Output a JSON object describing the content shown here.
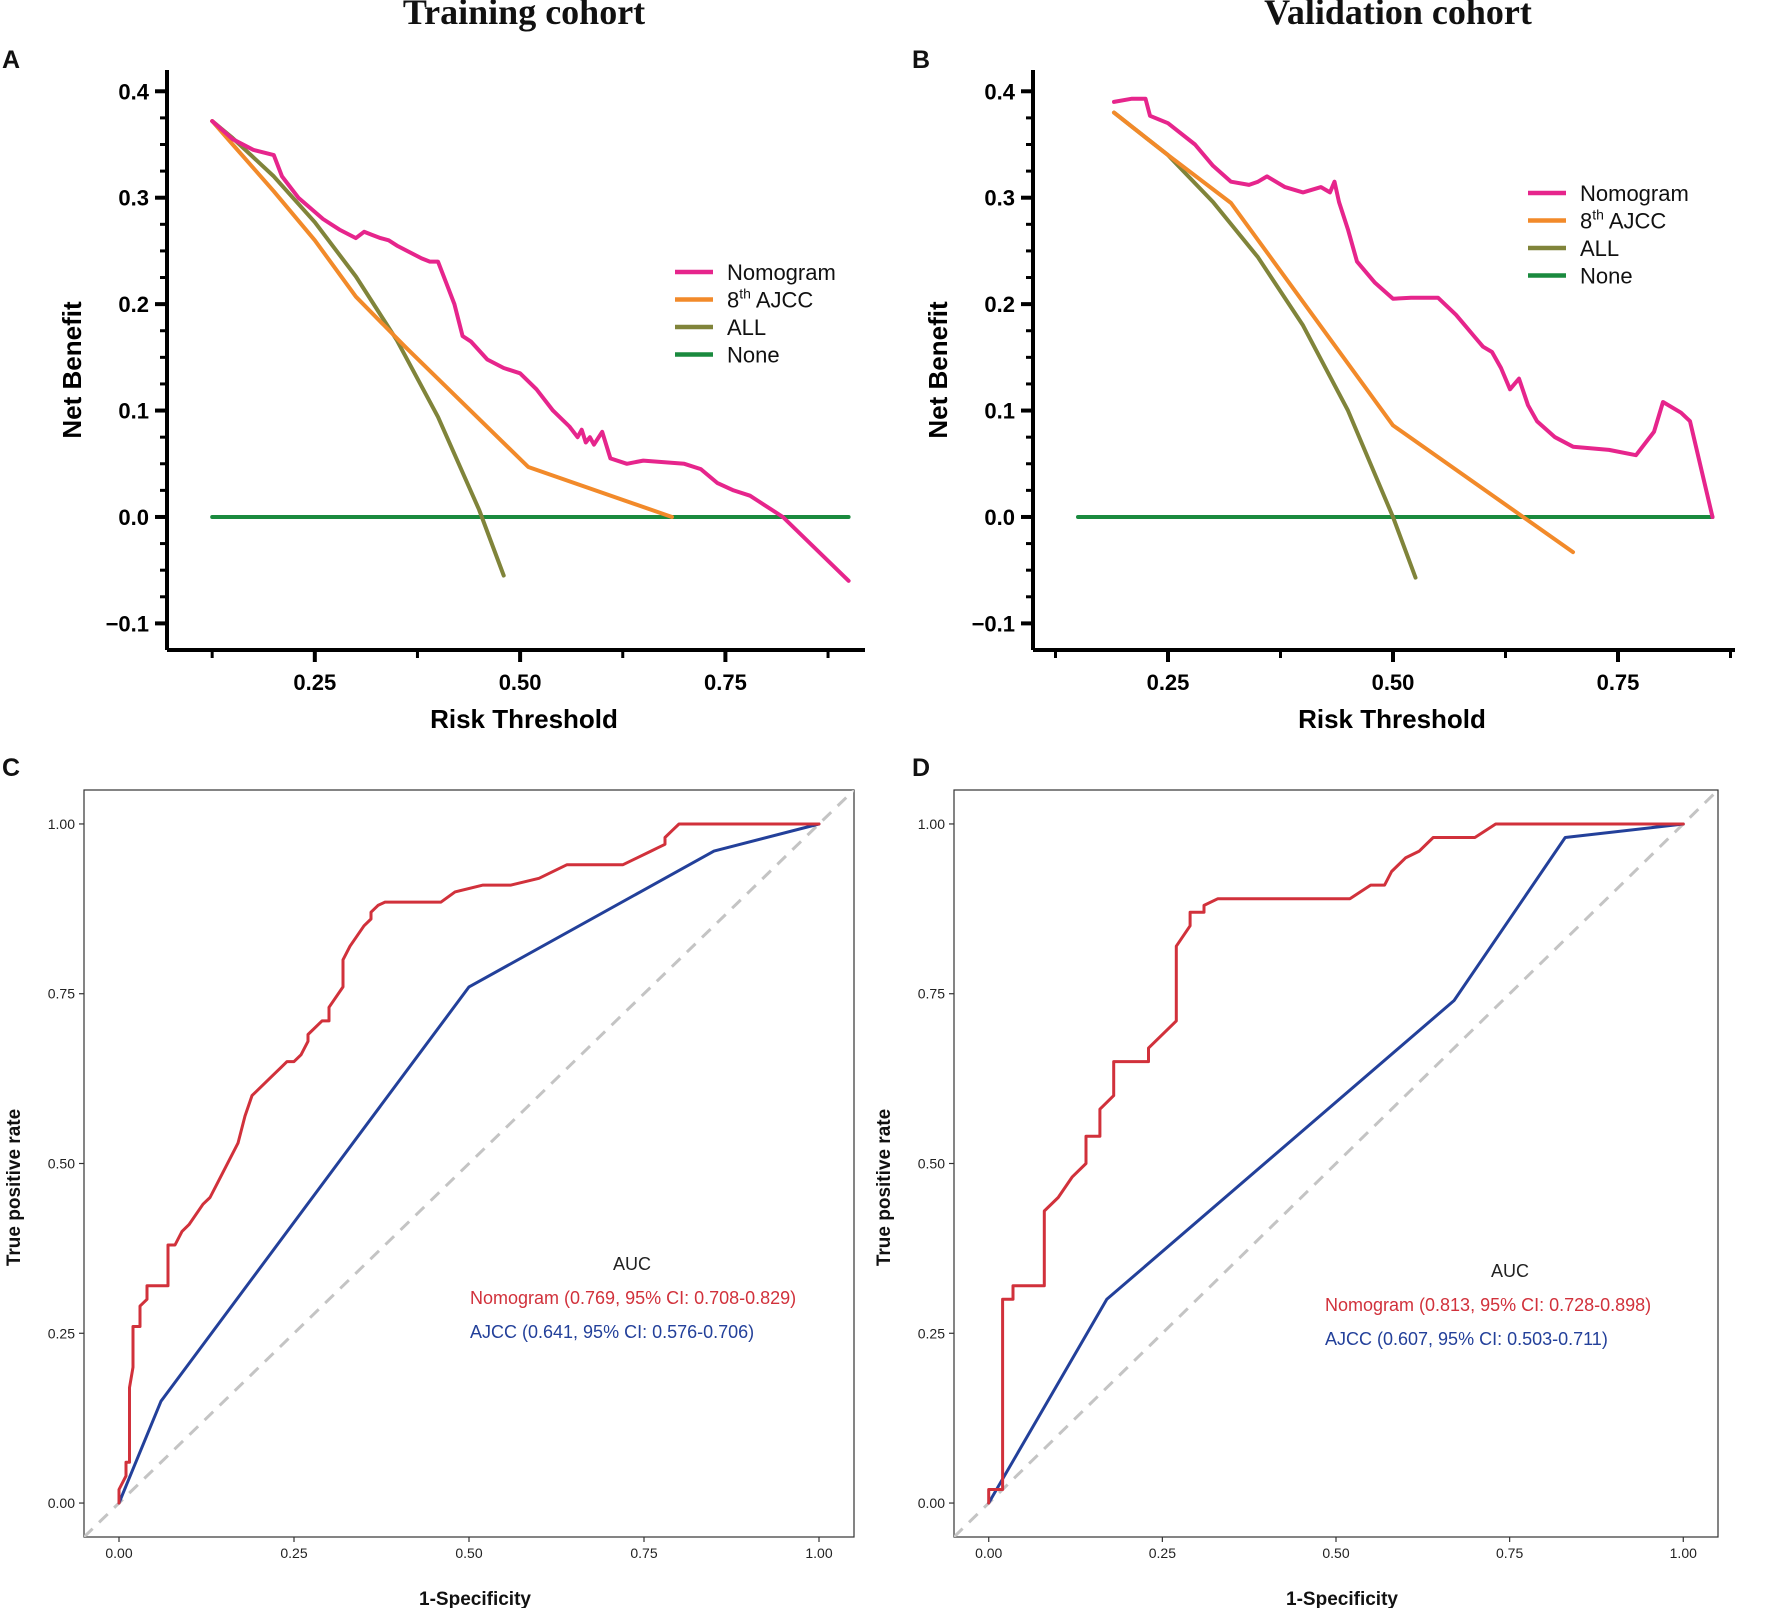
{
  "figure": {
    "cohort_titles": [
      "Training cohort",
      "Validation cohort"
    ]
  },
  "colors": {
    "nomogram_dca": "#e6258c",
    "ajcc_dca": "#f28a2a",
    "all_dca": "#80843a",
    "none_dca": "#1a8a3e",
    "nomogram_roc": "#d1313b",
    "ajcc_roc": "#23409a",
    "diagonal": "#c4c4c4"
  },
  "chart_data": [
    {
      "type": "line",
      "panel": "A",
      "title": "Training cohort",
      "xlabel": "Risk Threshold",
      "ylabel": "Net Benefit",
      "xlim": [
        0.07,
        0.92
      ],
      "ylim": [
        -0.125,
        0.42
      ],
      "xticks": [
        0.25,
        0.5,
        0.75
      ],
      "xtick_labels": [
        "0.25",
        "0.50",
        "0.75"
      ],
      "yticks": [
        -0.1,
        0,
        0.1,
        0.2,
        0.3,
        0.4
      ],
      "ytick_labels": [
        "−0.1",
        "0.0",
        "0.1",
        "0.2",
        "0.3",
        "0.4"
      ],
      "legend_position": "right",
      "series": [
        {
          "name": "Nomogram",
          "color_key": "nomogram_dca",
          "x": [
            0.125,
            0.15,
            0.175,
            0.2,
            0.21,
            0.23,
            0.26,
            0.27,
            0.28,
            0.3,
            0.31,
            0.32,
            0.33,
            0.34,
            0.35,
            0.38,
            0.39,
            0.4,
            0.41,
            0.42,
            0.43,
            0.44,
            0.46,
            0.48,
            0.5,
            0.52,
            0.54,
            0.56,
            0.57,
            0.575,
            0.58,
            0.585,
            0.59,
            0.6,
            0.61,
            0.63,
            0.65,
            0.7,
            0.72,
            0.74,
            0.76,
            0.78,
            0.79,
            0.82,
            0.9
          ],
          "y": [
            0.372,
            0.355,
            0.345,
            0.34,
            0.32,
            0.3,
            0.28,
            0.275,
            0.27,
            0.262,
            0.268,
            0.265,
            0.262,
            0.26,
            0.255,
            0.243,
            0.24,
            0.24,
            0.22,
            0.2,
            0.17,
            0.165,
            0.148,
            0.14,
            0.135,
            0.12,
            0.1,
            0.085,
            0.075,
            0.082,
            0.07,
            0.075,
            0.068,
            0.08,
            0.055,
            0.05,
            0.053,
            0.05,
            0.045,
            0.032,
            0.025,
            0.02,
            0.015,
            0.0,
            -0.06
          ]
        },
        {
          "name": "8th AJCC",
          "color_key": "ajcc_dca",
          "x": [
            0.125,
            0.15,
            0.2,
            0.25,
            0.3,
            0.36,
            0.51,
            0.685
          ],
          "y": [
            0.372,
            0.35,
            0.306,
            0.26,
            0.207,
            0.16,
            0.047,
            0.0
          ]
        },
        {
          "name": "ALL",
          "color_key": "all_dca",
          "x": [
            0.125,
            0.15,
            0.2,
            0.25,
            0.3,
            0.35,
            0.4,
            0.45,
            0.48
          ],
          "y": [
            0.372,
            0.356,
            0.32,
            0.277,
            0.226,
            0.166,
            0.094,
            0.007,
            -0.055
          ]
        },
        {
          "name": "None",
          "color_key": "none_dca",
          "x": [
            0.125,
            0.9
          ],
          "y": [
            0.0,
            0.0
          ]
        }
      ]
    },
    {
      "type": "line",
      "panel": "B",
      "title": "Validation cohort",
      "xlabel": "Risk Threshold",
      "ylabel": "Net Benefit",
      "xlim": [
        0.1,
        0.88
      ],
      "ylim": [
        -0.125,
        0.42
      ],
      "xticks": [
        0.25,
        0.5,
        0.75
      ],
      "xtick_labels": [
        "0.25",
        "0.50",
        "0.75"
      ],
      "yticks": [
        -0.1,
        0,
        0.1,
        0.2,
        0.3,
        0.4
      ],
      "ytick_labels": [
        "−0.1",
        "0.0",
        "0.1",
        "0.2",
        "0.3",
        "0.4"
      ],
      "legend_position": "top-right",
      "series": [
        {
          "name": "Nomogram",
          "color_key": "nomogram_dca",
          "x": [
            0.19,
            0.21,
            0.225,
            0.23,
            0.25,
            0.28,
            0.3,
            0.32,
            0.34,
            0.35,
            0.36,
            0.38,
            0.4,
            0.42,
            0.43,
            0.435,
            0.44,
            0.45,
            0.46,
            0.48,
            0.5,
            0.52,
            0.55,
            0.57,
            0.58,
            0.59,
            0.6,
            0.61,
            0.62,
            0.63,
            0.64,
            0.65,
            0.66,
            0.68,
            0.7,
            0.74,
            0.77,
            0.79,
            0.8,
            0.82,
            0.83,
            0.855
          ],
          "y": [
            0.39,
            0.393,
            0.393,
            0.377,
            0.37,
            0.35,
            0.33,
            0.315,
            0.312,
            0.315,
            0.32,
            0.31,
            0.305,
            0.31,
            0.305,
            0.315,
            0.296,
            0.27,
            0.24,
            0.22,
            0.205,
            0.206,
            0.206,
            0.19,
            0.18,
            0.17,
            0.16,
            0.155,
            0.14,
            0.12,
            0.13,
            0.105,
            0.09,
            0.075,
            0.066,
            0.063,
            0.058,
            0.08,
            0.108,
            0.098,
            0.09,
            0.0
          ]
        },
        {
          "name": "8th AJCC",
          "color_key": "ajcc_dca",
          "x": [
            0.19,
            0.25,
            0.32,
            0.5,
            0.7
          ],
          "y": [
            0.38,
            0.34,
            0.295,
            0.086,
            -0.033
          ]
        },
        {
          "name": "ALL",
          "color_key": "all_dca",
          "x": [
            0.19,
            0.25,
            0.3,
            0.35,
            0.4,
            0.45,
            0.5,
            0.525
          ],
          "y": [
            0.38,
            0.34,
            0.296,
            0.244,
            0.18,
            0.1,
            0.0,
            -0.057
          ]
        },
        {
          "name": "None",
          "color_key": "none_dca",
          "x": [
            0.15,
            0.855
          ],
          "y": [
            0.0,
            0.0
          ]
        }
      ]
    },
    {
      "type": "line",
      "panel": "C",
      "xlabel": "1-Specificity",
      "ylabel": "True positive rate",
      "xlim": [
        -0.05,
        1.05
      ],
      "ylim": [
        -0.05,
        1.05
      ],
      "xticks": [
        0,
        0.25,
        0.5,
        0.75,
        1
      ],
      "xtick_labels": [
        "0.00",
        "0.25",
        "0.50",
        "0.75",
        "1.00"
      ],
      "yticks": [
        0,
        0.25,
        0.5,
        0.75,
        1
      ],
      "ytick_labels": [
        "0.00",
        "0.25",
        "0.50",
        "0.75",
        "1.00"
      ],
      "legend_title": "AUC",
      "legend_position": "bottom-right",
      "series": [
        {
          "name": "Nomogram",
          "label": "Nomogram  (0.769, 95% CI: 0.708-0.829)",
          "color_key": "nomogram_roc",
          "x": [
            0.0,
            0.0,
            0.01,
            0.01,
            0.015,
            0.015,
            0.02,
            0.02,
            0.03,
            0.03,
            0.04,
            0.04,
            0.05,
            0.05,
            0.07,
            0.07,
            0.08,
            0.09,
            0.1,
            0.12,
            0.13,
            0.14,
            0.15,
            0.16,
            0.17,
            0.18,
            0.19,
            0.2,
            0.22,
            0.23,
            0.24,
            0.25,
            0.26,
            0.27,
            0.27,
            0.29,
            0.3,
            0.3,
            0.32,
            0.32,
            0.33,
            0.35,
            0.36,
            0.36,
            0.37,
            0.37,
            0.38,
            0.4,
            0.46,
            0.48,
            0.52,
            0.56,
            0.6,
            0.64,
            0.72,
            0.76,
            0.77,
            0.78,
            0.78,
            0.79,
            0.8,
            0.85,
            1.0
          ],
          "y": [
            0.0,
            0.02,
            0.04,
            0.06,
            0.06,
            0.17,
            0.2,
            0.26,
            0.26,
            0.29,
            0.3,
            0.32,
            0.32,
            0.32,
            0.32,
            0.38,
            0.38,
            0.4,
            0.41,
            0.44,
            0.45,
            0.47,
            0.49,
            0.51,
            0.53,
            0.57,
            0.6,
            0.61,
            0.63,
            0.64,
            0.65,
            0.65,
            0.66,
            0.68,
            0.69,
            0.71,
            0.71,
            0.73,
            0.76,
            0.8,
            0.82,
            0.85,
            0.86,
            0.87,
            0.88,
            0.88,
            0.885,
            0.885,
            0.885,
            0.9,
            0.91,
            0.91,
            0.92,
            0.94,
            0.94,
            0.96,
            0.965,
            0.97,
            0.98,
            0.99,
            1.0,
            1.0,
            1.0
          ]
        },
        {
          "name": "AJCC",
          "label": "AJCC (0.641, 95% CI: 0.576-0.706)",
          "color_key": "ajcc_roc",
          "x": [
            0.0,
            0.06,
            0.5,
            0.85,
            1.0
          ],
          "y": [
            0.0,
            0.15,
            0.76,
            0.96,
            1.0
          ]
        },
        {
          "name": "Reference",
          "color_key": "diagonal",
          "x": [
            -0.05,
            1.05
          ],
          "y": [
            -0.05,
            1.05
          ],
          "dashed": true
        }
      ]
    },
    {
      "type": "line",
      "panel": "D",
      "xlabel": "1-Specificity",
      "ylabel": "True positive rate",
      "xlim": [
        -0.05,
        1.05
      ],
      "ylim": [
        -0.05,
        1.05
      ],
      "xticks": [
        0,
        0.25,
        0.5,
        0.75,
        1
      ],
      "xtick_labels": [
        "0.00",
        "0.25",
        "0.50",
        "0.75",
        "1.00"
      ],
      "yticks": [
        0,
        0.25,
        0.5,
        0.75,
        1
      ],
      "ytick_labels": [
        "0.00",
        "0.25",
        "0.50",
        "0.75",
        "1.00"
      ],
      "legend_title": "AUC",
      "legend_position": "bottom-right",
      "series": [
        {
          "name": "Nomogram",
          "label": "Nomogram (0.813, 95% CI: 0.728-0.898)",
          "color_key": "nomogram_roc",
          "x": [
            0.0,
            0.0,
            0.02,
            0.02,
            0.035,
            0.035,
            0.08,
            0.08,
            0.1,
            0.12,
            0.14,
            0.14,
            0.16,
            0.16,
            0.18,
            0.18,
            0.23,
            0.23,
            0.27,
            0.27,
            0.29,
            0.29,
            0.31,
            0.31,
            0.33,
            0.35,
            0.36,
            0.37,
            0.52,
            0.55,
            0.57,
            0.58,
            0.6,
            0.62,
            0.64,
            0.67,
            0.7,
            0.73,
            1.0
          ],
          "y": [
            0.0,
            0.02,
            0.02,
            0.3,
            0.3,
            0.32,
            0.32,
            0.43,
            0.45,
            0.48,
            0.5,
            0.54,
            0.54,
            0.58,
            0.6,
            0.65,
            0.65,
            0.67,
            0.71,
            0.82,
            0.85,
            0.87,
            0.87,
            0.88,
            0.89,
            0.89,
            0.89,
            0.89,
            0.89,
            0.91,
            0.91,
            0.93,
            0.95,
            0.96,
            0.98,
            0.98,
            0.98,
            1.0,
            1.0
          ]
        },
        {
          "name": "AJCC",
          "label": "AJCC (0.607, 95% CI: 0.503-0.711)",
          "color_key": "ajcc_roc",
          "x": [
            0.0,
            0.17,
            0.67,
            0.83,
            1.0
          ],
          "y": [
            0.0,
            0.3,
            0.74,
            0.98,
            1.0
          ]
        },
        {
          "name": "Reference",
          "color_key": "diagonal",
          "x": [
            -0.05,
            1.05
          ],
          "y": [
            -0.05,
            1.05
          ],
          "dashed": true
        }
      ]
    }
  ],
  "legends": {
    "A": [
      {
        "label": "Nomogram"
      },
      {
        "label": "8",
        "sup": "th",
        "rest": " AJCC"
      },
      {
        "label": "ALL"
      },
      {
        "label": "None"
      }
    ],
    "B": [
      {
        "label": "Nomogram"
      },
      {
        "label": "8",
        "sup": "th",
        "rest": " AJCC"
      },
      {
        "label": "ALL"
      },
      {
        "label": "None"
      }
    ]
  }
}
